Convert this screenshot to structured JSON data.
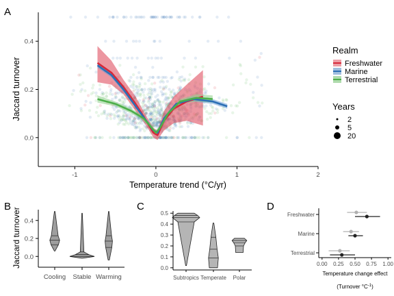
{
  "chart_data": [
    {
      "panel": "A",
      "type": "scatter",
      "xlabel": "Temperature trend (°C/yr)",
      "ylabel": "Jaccard turnover",
      "xlim": [
        -1.45,
        2.0
      ],
      "ylim": [
        -0.12,
        0.52
      ],
      "x_ticks": [
        "-1",
        "0",
        "1",
        "2"
      ],
      "y_ticks": [
        "0.0",
        "0.2",
        "0.4"
      ],
      "legend": {
        "position": "right",
        "realm_title": "Realm",
        "realm_items": [
          {
            "name": "Freshwater",
            "color": "#d62839"
          },
          {
            "name": "Marine",
            "color": "#2c6fb5"
          },
          {
            "name": "Terrestrial",
            "color": "#4daf4a"
          }
        ],
        "years_title": "Years",
        "years_items": [
          "2",
          "5",
          "20"
        ]
      },
      "series": [
        {
          "name": "Freshwater",
          "color": "#d62839",
          "band_color": "#e05060",
          "x": [
            -0.72,
            -0.55,
            -0.4,
            -0.25,
            -0.12,
            -0.03,
            0.02,
            0.1,
            0.22,
            0.38,
            0.58
          ],
          "y": [
            0.31,
            0.27,
            0.21,
            0.14,
            0.07,
            0.02,
            0.01,
            0.07,
            0.12,
            0.15,
            0.17
          ],
          "ci_low": [
            0.23,
            0.22,
            0.18,
            0.11,
            0.05,
            0.0,
            -0.01,
            0.03,
            0.06,
            0.07,
            0.05
          ],
          "ci_high": [
            0.38,
            0.32,
            0.24,
            0.17,
            0.09,
            0.04,
            0.03,
            0.11,
            0.17,
            0.22,
            0.28
          ]
        },
        {
          "name": "Marine",
          "color": "#2c6fb5",
          "band_color": "#6a9fd6",
          "x": [
            -0.72,
            -0.55,
            -0.4,
            -0.25,
            -0.12,
            -0.03,
            0.02,
            0.1,
            0.25,
            0.45,
            0.7,
            0.88
          ],
          "y": [
            0.3,
            0.26,
            0.2,
            0.13,
            0.07,
            0.03,
            0.02,
            0.08,
            0.14,
            0.16,
            0.15,
            0.13
          ],
          "ci_low": [
            0.29,
            0.25,
            0.19,
            0.125,
            0.065,
            0.025,
            0.015,
            0.075,
            0.135,
            0.15,
            0.14,
            0.12
          ],
          "ci_high": [
            0.31,
            0.27,
            0.21,
            0.135,
            0.075,
            0.035,
            0.025,
            0.085,
            0.145,
            0.17,
            0.16,
            0.14
          ]
        },
        {
          "name": "Terrestrial",
          "color": "#4daf4a",
          "band_color": "#8fd08d",
          "x": [
            -0.72,
            -0.5,
            -0.3,
            -0.15,
            -0.05,
            0.0,
            0.05,
            0.15,
            0.3,
            0.5,
            0.7
          ],
          "y": [
            0.16,
            0.14,
            0.11,
            0.08,
            0.04,
            0.02,
            0.04,
            0.1,
            0.15,
            0.165,
            0.16
          ],
          "ci_low": [
            0.145,
            0.13,
            0.1,
            0.07,
            0.03,
            0.01,
            0.03,
            0.09,
            0.14,
            0.15,
            0.145
          ],
          "ci_high": [
            0.175,
            0.15,
            0.12,
            0.09,
            0.05,
            0.03,
            0.05,
            0.11,
            0.16,
            0.18,
            0.175
          ]
        }
      ]
    },
    {
      "panel": "B",
      "type": "violin",
      "ylabel": "Jaccard turnover",
      "categories": [
        "Cooling",
        "Stable",
        "Warming"
      ],
      "ylim": [
        -0.12,
        0.52
      ],
      "y_ticks": [
        "0.0",
        "0.2",
        "0.4"
      ],
      "fill": "#9e9e9e",
      "violins": [
        {
          "name": "Cooling",
          "min": 0.06,
          "q1": 0.13,
          "median": 0.18,
          "q3": 0.23,
          "max": 0.5
        },
        {
          "name": "Stable",
          "min": -0.02,
          "q1": 0.0,
          "median": 0.02,
          "q3": 0.05,
          "max": 0.48
        },
        {
          "name": "Warming",
          "min": -0.04,
          "q1": 0.1,
          "median": 0.17,
          "q3": 0.23,
          "max": 0.5
        }
      ]
    },
    {
      "panel": "C",
      "type": "violin",
      "categories": [
        "Subtropics",
        "Temperate",
        "Polar"
      ],
      "ylim": [
        -0.02,
        0.52
      ],
      "y_ticks": [
        "0.0",
        "0.1",
        "0.2",
        "0.3",
        "0.4",
        "0.5"
      ],
      "fill": "#b5b5b5",
      "violins": [
        {
          "name": "Subtropics",
          "min": 0.02,
          "q1": 0.42,
          "median": 0.46,
          "q3": 0.48,
          "max": 0.5
        },
        {
          "name": "Temperate",
          "min": 0.0,
          "q1": 0.09,
          "median": 0.17,
          "q3": 0.28,
          "max": 0.41
        },
        {
          "name": "Polar",
          "min": 0.14,
          "q1": 0.2,
          "median": 0.23,
          "q3": 0.25,
          "max": 0.27
        }
      ]
    },
    {
      "panel": "D",
      "type": "scatter",
      "xlabel": "Temperature change effect",
      "xlabel2": "(Turnover  °C",
      "xlabel2_sup": "-1",
      "xlabel2_end": ")",
      "categories": [
        "Freshwater",
        "Marine",
        "Terrestrial"
      ],
      "xlim": [
        -0.05,
        1.05
      ],
      "x_ticks": [
        "0.00",
        "0.25",
        "0.50",
        "0.75",
        "1.00"
      ],
      "series": [
        {
          "name": "Freshwater",
          "color": "#222222",
          "value": 0.68,
          "lo": 0.5,
          "hi": 0.88
        },
        {
          "name": "Freshwater",
          "color": "#b0b0b0",
          "value": 0.52,
          "lo": 0.38,
          "hi": 0.68
        },
        {
          "name": "Marine",
          "color": "#222222",
          "value": 0.5,
          "lo": 0.4,
          "hi": 0.62
        },
        {
          "name": "Marine",
          "color": "#b0b0b0",
          "value": 0.44,
          "lo": 0.32,
          "hi": 0.56
        },
        {
          "name": "Terrestrial",
          "color": "#222222",
          "value": 0.3,
          "lo": 0.12,
          "hi": 0.5
        },
        {
          "name": "Terrestrial",
          "color": "#b0b0b0",
          "value": 0.27,
          "lo": 0.1,
          "hi": 0.42
        }
      ]
    }
  ],
  "panel_letters": [
    "A",
    "B",
    "C",
    "D"
  ]
}
